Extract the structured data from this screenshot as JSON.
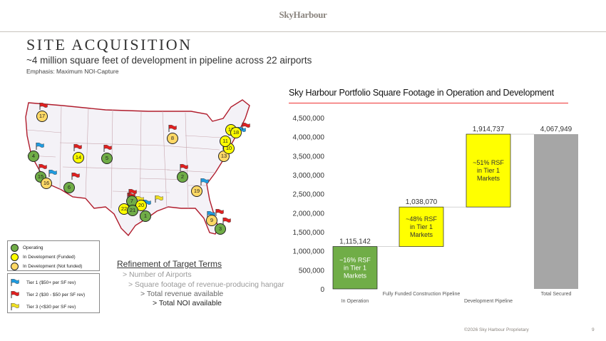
{
  "brand": "SkyHarbour",
  "title": "SITE ACQUISITION",
  "subtitle": "~4 million square feet of development in pipeline across 22 airports",
  "emphasis": "Emphasis: Maximum NOI-Capture",
  "colors": {
    "operating": "#70ad47",
    "funded": "#ffff00",
    "not_funded": "#ffd966",
    "tier1": "#1f9be0",
    "tier2": "#e02020",
    "tier3": "#f0e020",
    "total": "#a6a6a6",
    "accent": "#e33333"
  },
  "map": {
    "markers": [
      {
        "label": "17",
        "status": "nf"
      },
      {
        "label": "8",
        "status": "nf"
      },
      {
        "label": "14",
        "status": "fund"
      },
      {
        "label": "5",
        "status": "op"
      },
      {
        "label": "4",
        "status": "op"
      },
      {
        "label": "15",
        "status": "op"
      },
      {
        "label": "16",
        "status": "nf"
      },
      {
        "label": "6",
        "status": "op"
      },
      {
        "label": "2",
        "status": "op"
      },
      {
        "label": "19",
        "status": "nf"
      },
      {
        "label": "7",
        "status": "op"
      },
      {
        "label": "20",
        "status": "fund"
      },
      {
        "label": "22",
        "status": "fund"
      },
      {
        "label": "21",
        "status": "op"
      },
      {
        "label": "1",
        "status": "op"
      },
      {
        "label": "9",
        "status": "nf"
      },
      {
        "label": "3",
        "status": "op"
      },
      {
        "label": "13",
        "status": "nf"
      },
      {
        "label": "10",
        "status": "fund"
      },
      {
        "label": "11",
        "status": "fund"
      },
      {
        "label": "12",
        "status": "fund"
      },
      {
        "label": "18",
        "status": "fund"
      }
    ]
  },
  "legend_status": [
    {
      "label": "Operating",
      "status": "op"
    },
    {
      "label": "In Development (Funded)",
      "status": "fund"
    },
    {
      "label": "In Development (Not funded)",
      "status": "nf"
    }
  ],
  "legend_tiers": [
    {
      "label": "Tier 1 ($50+ per SF rev)",
      "tier": "tier1"
    },
    {
      "label": "Tier 2 ($30 - $50 per SF rev)",
      "tier": "tier2"
    },
    {
      "label": "Tier 3 (<$30 per SF rev)",
      "tier": "tier3"
    }
  ],
  "refinement": {
    "title": "Refinement of Target Terms",
    "lines": [
      "> Number of Airports",
      "> Square footage of revenue-producing hangar",
      "> Total revenue available",
      "> Total NOI available"
    ]
  },
  "chart_title": "Sky Harbour Portfolio Square Footage in Operation and Development",
  "chart_data": {
    "type": "bar",
    "subtype": "waterfall",
    "categories": [
      "In Operation",
      "Fully Funded Construction Pipeline",
      "Development Pipeline",
      "Total Secured"
    ],
    "values": [
      1115142,
      1038070,
      1914737,
      4067949
    ],
    "value_labels": [
      "1,115,142",
      "1,038,070",
      "1,914,737",
      "4,067,949"
    ],
    "annotations": [
      [
        "~16% RSF",
        "in Tier 1",
        "Markets"
      ],
      [
        "~48% RSF",
        "in Tier 1",
        "Markets"
      ],
      [
        "~51% RSF",
        "in Tier 1",
        "Markets"
      ],
      []
    ],
    "ylim": [
      0,
      4500000
    ],
    "yticks": [
      0,
      500000,
      1000000,
      1500000,
      2000000,
      2500000,
      3000000,
      3500000,
      4000000,
      4500000
    ],
    "ytick_labels": [
      "0",
      "500,000",
      "1,000,000",
      "1,500,000",
      "2,000,000",
      "2,500,000",
      "3,000,000",
      "3,500,000",
      "4,000,000",
      "4,500,000"
    ],
    "bar_colors": [
      "#70ad47",
      "#ffff00",
      "#ffff00",
      "#a6a6a6"
    ],
    "grid": false
  },
  "footer": "©2026 Sky Harbour Proprietary",
  "page_number": "9"
}
